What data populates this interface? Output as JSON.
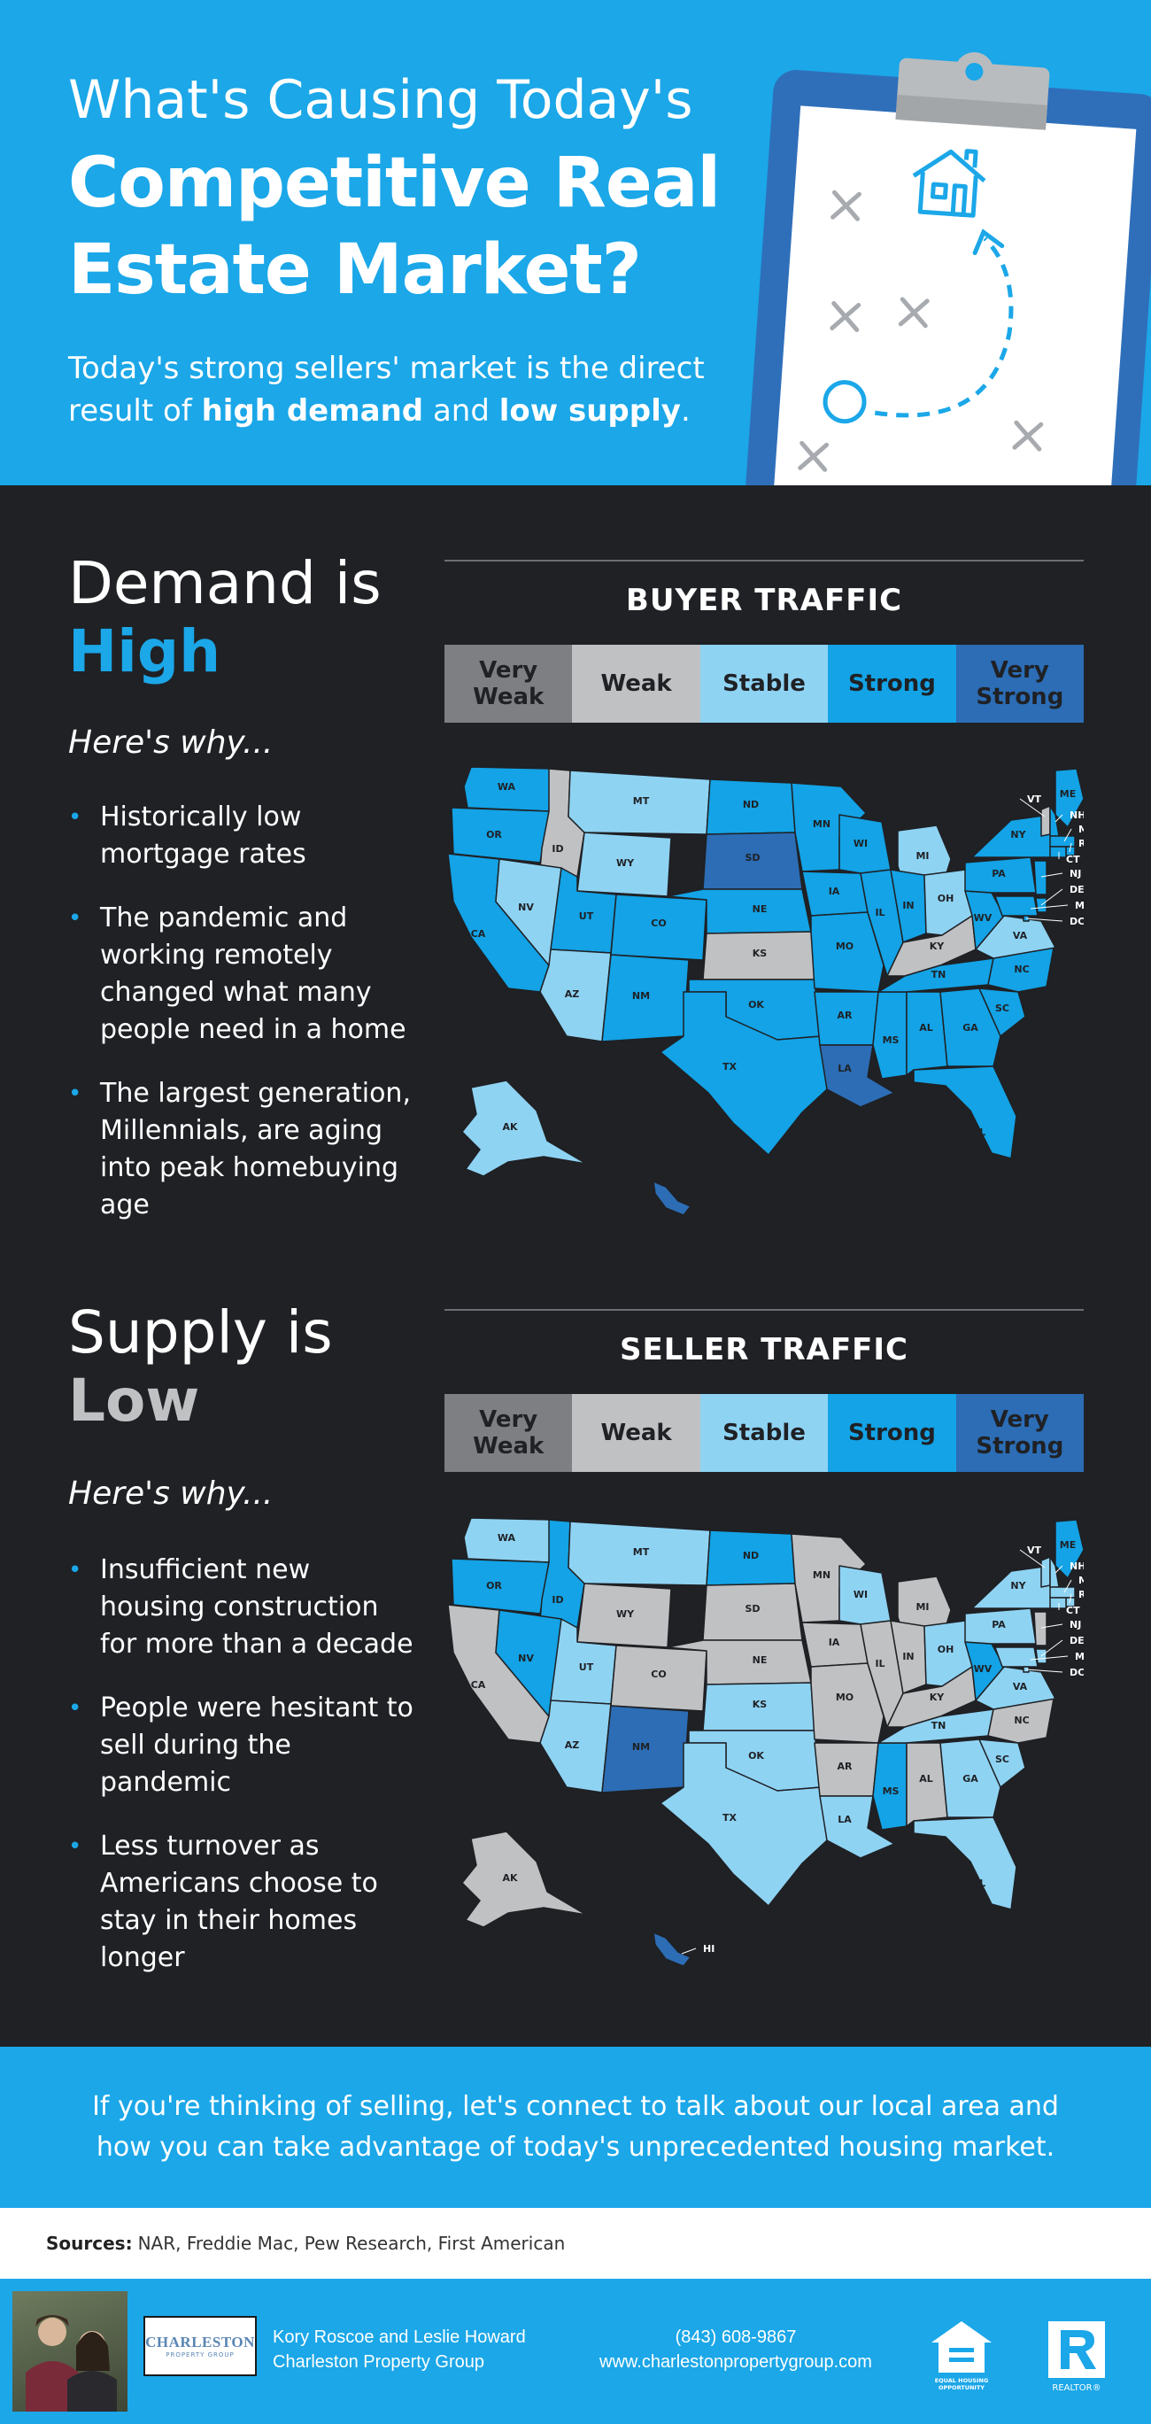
{
  "header": {
    "line1": "What's Causing Today's",
    "line2": "Competitive Real",
    "line3": "Estate Market?",
    "intro_pre": "Today's strong sellers' market is the direct result of ",
    "intro_b1": "high demand",
    "intro_mid": " and ",
    "intro_b2": "low supply",
    "intro_end": "."
  },
  "colors": {
    "header_bg": "#1ba7e8",
    "dark_bg": "#1f2125",
    "very_weak": "#7d7f83",
    "weak": "#bfc1c3",
    "stable": "#8fd3f3",
    "strong": "#13a3e6",
    "very_strong": "#2c6db5"
  },
  "legend": [
    "Very\nWeak",
    "Weak",
    "Stable",
    "Strong",
    "Very\nStrong"
  ],
  "demand": {
    "title": "Demand is",
    "accent": "High",
    "why": "Here's why...",
    "bullets": [
      "Historically low mortgage rates",
      "The pandemic and working remotely changed what many people need in a home",
      "The largest generation, Millennials, are aging into peak homebuying age"
    ],
    "panel_title": "BUYER TRAFFIC"
  },
  "supply": {
    "title": "Supply is",
    "accent": "Low",
    "why": "Here's why...",
    "bullets": [
      "Insufficient new housing construction for more than a decade",
      "People were hesitant to sell during the pandemic",
      "Less turnover as Americans choose to stay in their homes longer"
    ],
    "panel_title": "SELLER TRAFFIC"
  },
  "maps": {
    "buyer": {
      "levels": {
        "WA": "strong",
        "OR": "strong",
        "CA": "strong",
        "ID": "weak",
        "NV": "stable",
        "MT": "stable",
        "WY": "stable",
        "UT": "strong",
        "AZ": "stable",
        "CO": "strong",
        "NM": "strong",
        "ND": "strong",
        "SD": "very_strong",
        "NE": "strong",
        "KS": "weak",
        "OK": "strong",
        "TX": "strong",
        "MN": "strong",
        "IA": "strong",
        "MO": "strong",
        "AR": "strong",
        "LA": "very_strong",
        "WI": "strong",
        "IL": "strong",
        "MS": "strong",
        "MI": "stable",
        "IN": "strong",
        "OH": "stable",
        "KY": "weak",
        "TN": "strong",
        "AL": "strong",
        "GA": "strong",
        "FL": "strong",
        "SC": "strong",
        "NC": "strong",
        "VA": "stable",
        "WV": "strong",
        "PA": "strong",
        "NY": "strong",
        "ME": "strong",
        "VT": "weak",
        "NH": "strong",
        "MA": "strong",
        "RI": "strong",
        "CT": "strong",
        "NJ": "strong",
        "DE": "strong",
        "MD": "strong",
        "DC": "strong",
        "AK": "stable",
        "HI": "very_strong"
      },
      "labels": {
        "WA": "WA",
        "OR": "OR",
        "CA": "CA",
        "ID": "ID",
        "NV": "NV",
        "MT": "MT",
        "WY": "WY",
        "UT": "UT",
        "AZ": "AZ",
        "CO": "CO",
        "NM": "NM",
        "ND": "ND",
        "SD": "SD",
        "NE": "NE",
        "KS": "KS",
        "OK": "OK",
        "TX": "TX",
        "MN": "MN",
        "IA": "IA",
        "MO": "MO",
        "AR": "AR",
        "LA": "LA",
        "WI": "WI",
        "IL": "IL",
        "MS": "MS",
        "MI": "MI",
        "IN": "IN",
        "OH": "OH",
        "KY": "KY",
        "TN": "TN",
        "AL": "AL",
        "GA": "GA",
        "FL": "FL",
        "SC": "SC",
        "NC": "NC",
        "VA": "VA",
        "WV": "WV",
        "PA": "PA",
        "NY": "NY",
        "ME": "ME",
        "VT": "VT",
        "NH": "NH",
        "MA": "MA",
        "RI": "RI",
        "CT": "CT",
        "NJ": "NJ",
        "DE": "DE",
        "MD": "MD",
        "DC": "DC",
        "AK": "AK"
      }
    },
    "seller": {
      "levels": {
        "WA": "stable",
        "OR": "strong",
        "CA": "weak",
        "ID": "strong",
        "NV": "strong",
        "MT": "stable",
        "WY": "weak",
        "UT": "stable",
        "AZ": "stable",
        "CO": "weak",
        "NM": "very_strong",
        "ND": "strong",
        "SD": "weak",
        "NE": "weak",
        "KS": "stable",
        "OK": "stable",
        "TX": "stable",
        "MN": "weak",
        "IA": "weak",
        "MO": "weak",
        "AR": "weak",
        "LA": "stable",
        "WI": "stable",
        "IL": "weak",
        "MS": "strong",
        "MI": "weak",
        "IN": "weak",
        "OH": "stable",
        "KY": "weak",
        "TN": "stable",
        "AL": "weak",
        "GA": "stable",
        "FL": "stable",
        "SC": "stable",
        "NC": "weak",
        "VA": "stable",
        "WV": "strong",
        "PA": "stable",
        "NY": "stable",
        "ME": "strong",
        "VT": "stable",
        "NH": "stable",
        "MA": "stable",
        "RI": "stable",
        "CT": "stable",
        "NJ": "weak",
        "DE": "stable",
        "MD": "stable",
        "DC": "stable",
        "AK": "weak",
        "HI": "very_strong"
      },
      "labels": {
        "WA": "WA",
        "OR": "OR",
        "CA": "CA",
        "ID": "ID",
        "NV": "NV",
        "MT": "MT",
        "WY": "WY",
        "UT": "UT",
        "AZ": "AZ",
        "CO": "CO",
        "NM": "NM",
        "ND": "ND",
        "SD": "SD",
        "NE": "NE",
        "KS": "KS",
        "OK": "OK",
        "TX": "TX",
        "MN": "MN",
        "IA": "IA",
        "MO": "MO",
        "AR": "AR",
        "LA": "LA",
        "WI": "WI",
        "IL": "IL",
        "MS": "MS",
        "MI": "MI",
        "IN": "IN",
        "OH": "OH",
        "KY": "KY",
        "TN": "TN",
        "AL": "AL",
        "GA": "GA",
        "FL": "FL",
        "SC": "SC",
        "NC": "NC",
        "VA": "VA",
        "WV": "WV",
        "PA": "PA",
        "NY": "NY",
        "ME": "ME",
        "VT": "VT",
        "NH": "NH",
        "MA": "MA",
        "RI": "RI",
        "CT": "CT",
        "NJ": "NJ",
        "DE": "DE",
        "MD": "MD",
        "DC": "DC",
        "AK": "AK",
        "HI": "HI"
      }
    }
  },
  "cta": {
    "text": "If you're thinking of selling, let's connect to talk about our local area and how you can take advantage of today's unprecedented housing market."
  },
  "sources": {
    "label": "Sources:",
    "text": "NAR, Freddie Mac, Pew Research, First American"
  },
  "footer": {
    "logo_name": "CHARLESTON",
    "logo_sub": "PROPERTY GROUP",
    "names": "Kory Roscoe and Leslie Howard",
    "company": "Charleston Property Group",
    "phone": "(843) 608-9867",
    "website": "www.charlestonpropertygroup.com",
    "eho_icon": "equal-housing-opportunity-icon",
    "eho_text": "EQUAL HOUSING OPPORTUNITY",
    "realtor_icon": "realtor-icon",
    "realtor_text": "REALTOR®"
  }
}
